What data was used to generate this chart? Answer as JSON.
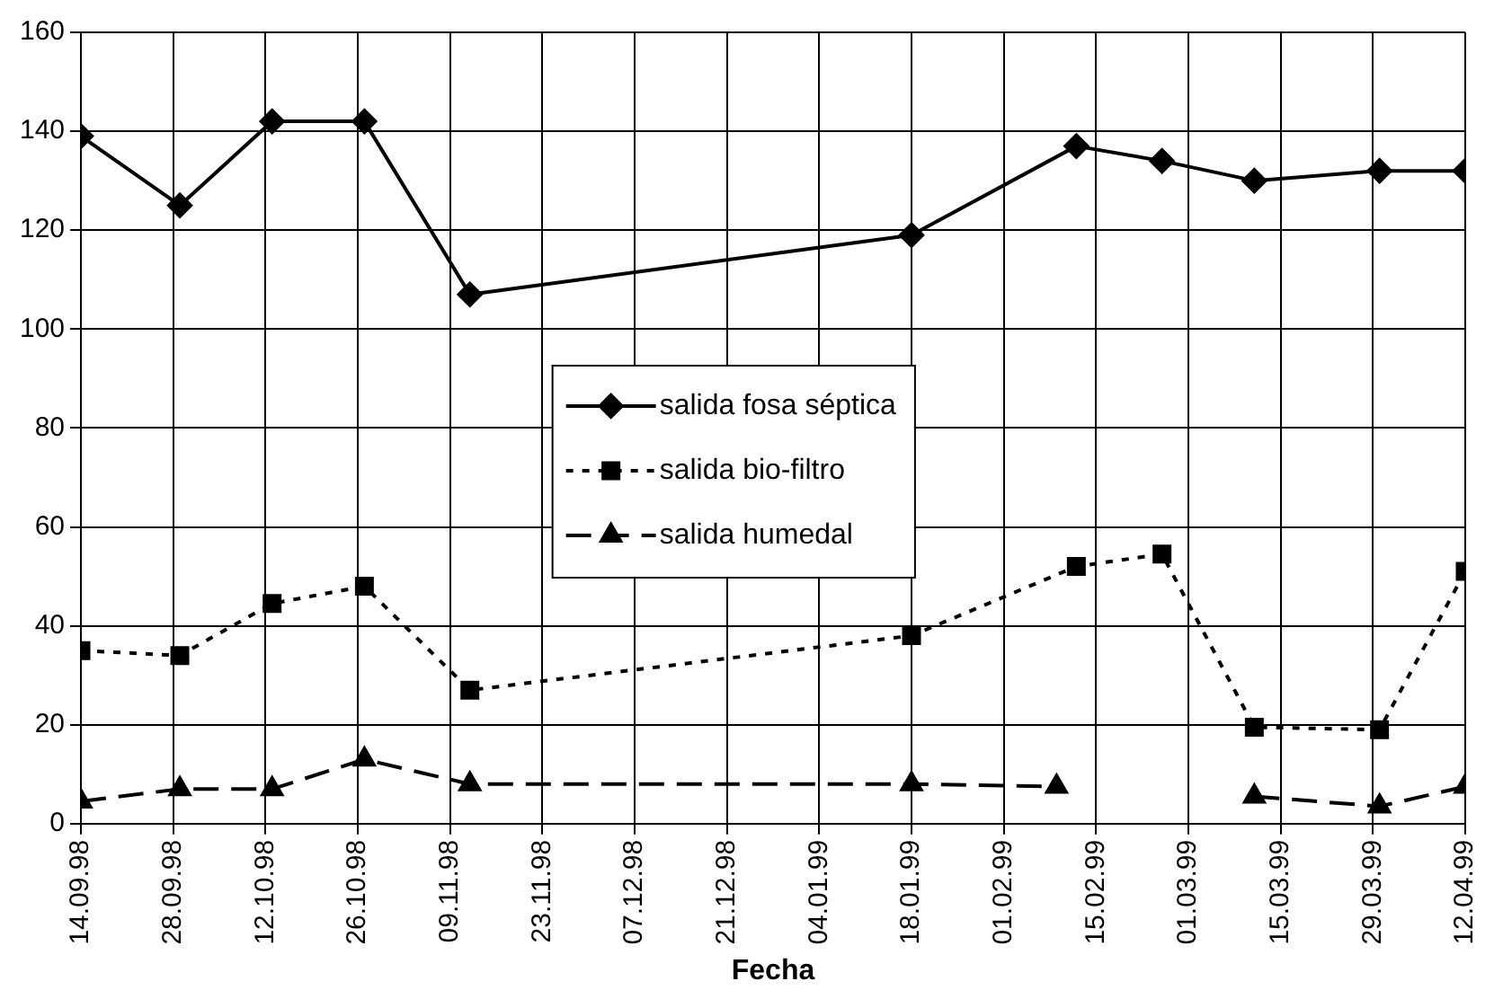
{
  "chart_data": {
    "type": "line",
    "xlabel": "Fecha",
    "xlim": [
      "1998-09-14",
      "1999-04-12"
    ],
    "xticks": [
      {
        "value": "1998-09-14",
        "label": "14.09.98"
      },
      {
        "value": "1998-09-28",
        "label": "28.09.98"
      },
      {
        "value": "1998-10-12",
        "label": "12.10.98"
      },
      {
        "value": "1998-10-26",
        "label": "26.10.98"
      },
      {
        "value": "1998-11-09",
        "label": "09.11.98"
      },
      {
        "value": "1998-11-23",
        "label": "23.11.98"
      },
      {
        "value": "1998-12-07",
        "label": "07.12.98"
      },
      {
        "value": "1998-12-21",
        "label": "21.12.98"
      },
      {
        "value": "1999-01-04",
        "label": "04.01.99"
      },
      {
        "value": "1999-01-18",
        "label": "18.01.99"
      },
      {
        "value": "1999-02-01",
        "label": "01.02.99"
      },
      {
        "value": "1999-02-15",
        "label": "15.02.99"
      },
      {
        "value": "1999-03-01",
        "label": "01.03.99"
      },
      {
        "value": "1999-03-15",
        "label": "15.03.99"
      },
      {
        "value": "1999-03-29",
        "label": "29.03.99"
      },
      {
        "value": "1999-04-12",
        "label": "12.04.99"
      }
    ],
    "ylim": [
      0,
      160
    ],
    "yticks": [
      0,
      20,
      40,
      60,
      80,
      100,
      120,
      140,
      160
    ],
    "grid": true,
    "legend": "center",
    "x": [
      "1998-09-14",
      "1998-09-29",
      "1998-10-13",
      "1998-10-27",
      "1998-11-12",
      "1999-01-18",
      "1999-02-12",
      "1999-02-25",
      "1999-03-11",
      "1999-03-30",
      "1999-04-12"
    ],
    "series": [
      {
        "name": "salida fosa séptica",
        "color": "#000000",
        "marker": "diamond",
        "line_style": "solid",
        "values": [
          139,
          125,
          142,
          142,
          107,
          119,
          137,
          134,
          130,
          132,
          132
        ]
      },
      {
        "name": "salida bio-filtro",
        "color": "#000000",
        "marker": "square",
        "line_style": "dotted",
        "values": [
          35,
          34,
          44.5,
          48,
          27,
          38,
          52,
          54.5,
          19.5,
          19,
          51
        ]
      },
      {
        "name": "salida humedal",
        "color": "#000000",
        "marker": "triangle",
        "line_style": "dashed",
        "x": [
          "1998-09-14",
          "1998-09-29",
          "1998-10-13",
          "1998-10-27",
          "1998-11-12",
          "1999-01-18",
          "1999-02-09",
          "1999-02-25",
          "1999-03-11",
          "1999-03-30",
          "1999-04-12"
        ],
        "values": [
          4.5,
          7,
          7,
          13,
          8,
          8,
          7.5,
          null,
          5.5,
          3.5,
          7.5
        ]
      }
    ]
  }
}
